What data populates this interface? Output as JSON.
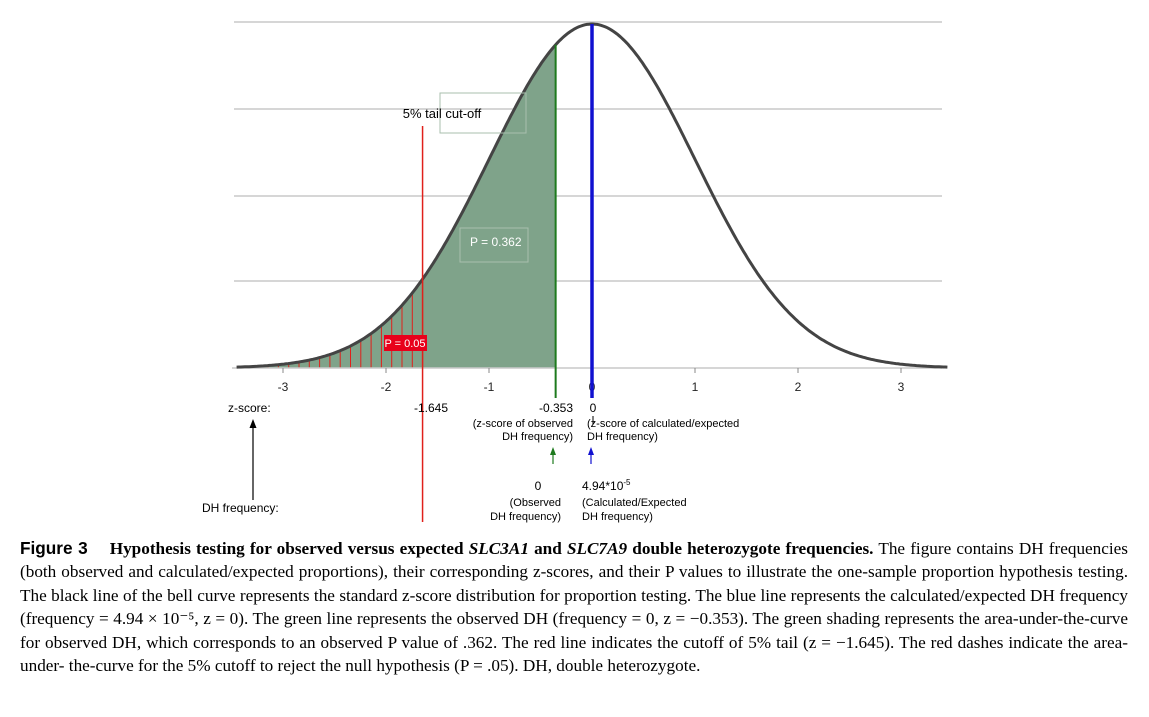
{
  "chart_data": {
    "type": "area",
    "distribution": "standard normal",
    "xlim": [
      -3.45,
      3.45
    ],
    "x_ticks": [
      "-3",
      "-2",
      "-1",
      "0",
      "1",
      "2",
      "3"
    ],
    "horizontal_grid": true,
    "curve_color": "#444444",
    "p_0362_region": {
      "from": -3.45,
      "to": -0.353,
      "color": "#7fa38a"
    },
    "p_005_region": {
      "from": -3.45,
      "to": -1.645,
      "color": "#e0201b"
    },
    "annotations": {
      "tail_cutoff": "5% tail cut-off",
      "p_observed": "P = 0.362",
      "p_cutoff": "P = 0.05"
    },
    "reference_lines": [
      {
        "name": "red",
        "z": -1.645,
        "color": "#e0201b"
      },
      {
        "name": "green",
        "z": -0.353,
        "color": "#1e7a1e"
      },
      {
        "name": "blue",
        "z": 0,
        "color": "#1010d0"
      }
    ],
    "zscore_row": {
      "label": "z-score:",
      "red_value": "-1.645",
      "green_value": "-0.353",
      "blue_value": "0",
      "green_note": [
        "(z-score of observed",
        "DH frequency)"
      ],
      "blue_note": [
        "(z-score of calculated/expected",
        "DH frequency)"
      ]
    },
    "frequency_row": {
      "label": "DH frequency:",
      "observed_value": "0",
      "expected_base": "4.94*10",
      "expected_exp": "-5",
      "observed_note": [
        "(Observed",
        "DH frequency)"
      ],
      "expected_note": [
        "(Calculated/Expected",
        "DH frequency)"
      ]
    }
  },
  "caption": {
    "label": "Figure 3",
    "title_parts": [
      "Hypothesis testing for observed versus expected ",
      "SLC3A1",
      " and ",
      "SLC7A9",
      " double heterozygote frequencies."
    ],
    "body": " The figure contains DH frequencies (both observed and calculated/expected proportions), their corresponding z-scores, and their P values to illustrate the one-sample proportion hypothesis testing. The black line of the bell curve represents the standard z-score distribution for proportion testing. The blue line represents the calculated/expected DH frequency (frequency = 4.94 × 10⁻⁵, z = 0). The green line represents the observed DH (frequency = 0, z = −0.353). The green shading represents the area-under-the-curve for observed DH, which corresponds to an observed P value of .362. The red line indicates the cutoff of 5% tail (z = −1.645). The red dashes indicate the area-under- the-curve for the 5% cutoff to reject the null hypothesis (P = .05). DH, double heterozygote."
  }
}
